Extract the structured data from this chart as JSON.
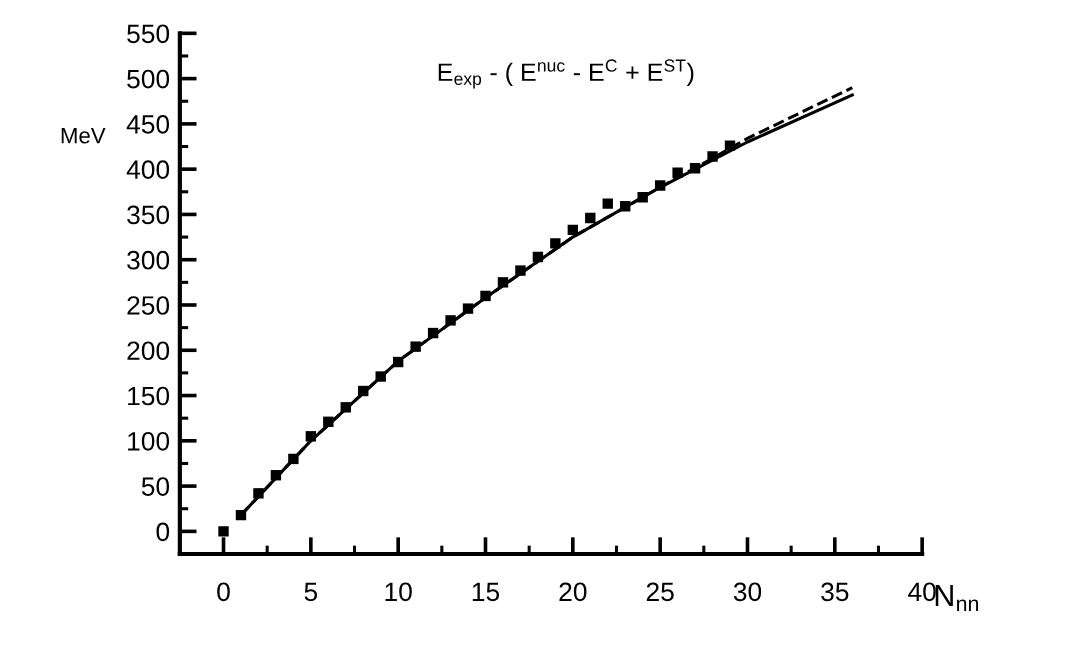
{
  "chart_data": {
    "type": "scatter",
    "title": "E$_{exp}$ - ( E$^{nuc}$ - E$^{C}$ + E$^{ST}$)",
    "xlabel": "N$_{nn}$",
    "ylabel": "MeV",
    "xlim": [
      -2.5,
      40
    ],
    "ylim": [
      -25,
      550
    ],
    "xticks": [
      0,
      5,
      10,
      15,
      20,
      25,
      30,
      35,
      40
    ],
    "yticks": [
      0,
      50,
      100,
      150,
      200,
      250,
      300,
      350,
      400,
      450,
      500,
      550
    ],
    "grid": false,
    "legend": false,
    "series": [
      {
        "marker": "square",
        "color": "#000000",
        "x": [
          0,
          1,
          2,
          3,
          4,
          5,
          6,
          7,
          8,
          9,
          10,
          11,
          12,
          13,
          14,
          15,
          16,
          17,
          18,
          19,
          20,
          21,
          22,
          23,
          24,
          25,
          26,
          27,
          28,
          29
        ],
        "values": [
          0,
          18,
          42,
          62,
          80,
          105,
          121,
          137,
          155,
          171,
          187,
          204,
          219,
          233,
          246,
          260,
          275,
          288,
          303,
          318,
          333,
          346,
          362,
          359,
          369,
          382,
          396,
          401,
          414,
          426
        ]
      },
      {
        "type": "line",
        "line_style": "solid",
        "color": "#000000",
        "x": [
          1,
          5,
          10,
          15,
          20,
          25,
          30,
          36
        ],
        "values": [
          18,
          100,
          188,
          258,
          325,
          380,
          430,
          482
        ]
      },
      {
        "type": "line",
        "line_style": "dashed",
        "color": "#000000",
        "x": [
          1,
          5,
          10,
          15,
          20,
          25,
          28,
          30,
          33,
          36
        ],
        "values": [
          18,
          100,
          188,
          258,
          325,
          380,
          412,
          434,
          462,
          490
        ]
      }
    ]
  }
}
